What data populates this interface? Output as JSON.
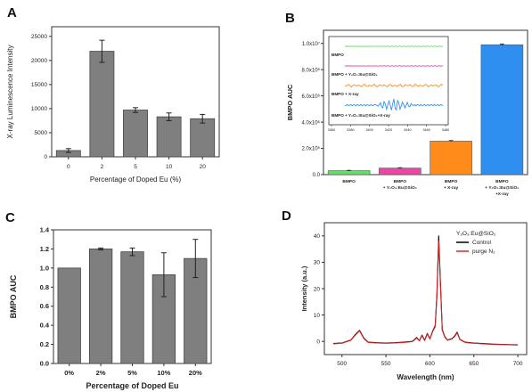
{
  "figure": {
    "panel_labels": [
      "A",
      "B",
      "C",
      "D"
    ]
  },
  "chart_data": [
    {
      "panel": "A",
      "type": "bar",
      "xlabel": "Percentage of Doped Eu (%)",
      "ylabel": "X-ray Luminescence Intensity",
      "categories": [
        "0",
        "2",
        "5",
        "10",
        "20"
      ],
      "values": [
        1300,
        21900,
        9700,
        8300,
        7900
      ],
      "errors": [
        400,
        2300,
        500,
        800,
        900
      ],
      "ylim": [
        0,
        27000
      ],
      "yticks": [
        0,
        5000,
        10000,
        15000,
        20000,
        25000
      ],
      "bar_color": "#7f7f7f"
    },
    {
      "panel": "B",
      "type": "bar",
      "ylabel": "BMPO AUC",
      "ylim": [
        0,
        11000000
      ],
      "yticks": [
        0,
        2000000,
        4000000,
        6000000,
        8000000,
        10000000
      ],
      "ytick_labels": [
        "0.0",
        "2.0x10⁶",
        "4.0x10⁶",
        "6.0x10⁶",
        "8.0x10⁶",
        "1.0x10⁷"
      ],
      "categories": [
        [
          "BMPO"
        ],
        [
          "BMPO",
          "+ Y₂O₃:Eu@SiO₂"
        ],
        [
          "BMPO",
          "+ X-ray"
        ],
        [
          "BMPO",
          "+ Y₂O₃:Eu@SiO₂",
          "+X-ray"
        ]
      ],
      "values": [
        300000,
        500000,
        2550000,
        9900000
      ],
      "errors": [
        30000,
        30000,
        50000,
        60000
      ],
      "colors": [
        "#66dd66",
        "#ee44aa",
        "#ff8c1a",
        "#2f8ff0"
      ],
      "inset": {
        "type": "line",
        "x_ticks": [
          3360,
          3380,
          3400,
          3420,
          3440,
          3460,
          3480
        ],
        "xlim": [
          3360,
          3480
        ],
        "series": [
          {
            "name": "BMPO",
            "color": "#66dd66"
          },
          {
            "name": "BMPO + Y₂O₃:Eu@SiO₂",
            "color": "#ee44aa"
          },
          {
            "name": "BMPO + X-ray",
            "color": "#ff8c1a"
          },
          {
            "name": "BMPO + Y₂O₃:Eu@SiO₂+X-ray",
            "color": "#2f8ff0"
          }
        ]
      }
    },
    {
      "panel": "C",
      "type": "bar",
      "xlabel": "Percentage of Doped Eu",
      "ylabel": "BMPO AUC",
      "categories": [
        "0%",
        "2%",
        "5%",
        "10%",
        "20%"
      ],
      "values": [
        1.0,
        1.2,
        1.17,
        0.93,
        1.1
      ],
      "errors": [
        0.0,
        0.01,
        0.04,
        0.23,
        0.2
      ],
      "ylim": [
        0,
        1.4
      ],
      "yticks": [
        0.0,
        0.2,
        0.4,
        0.6,
        0.8,
        1.0,
        1.2,
        1.4
      ],
      "bar_color": "#7f7f7f"
    },
    {
      "panel": "D",
      "type": "line",
      "xlabel": "Wavelength (nm)",
      "ylabel": "Intensity (a.u.)",
      "legend_title": "Y₂O₃:Eu@SiO₂",
      "xlim": [
        480,
        710
      ],
      "ylim": [
        -5,
        45
      ],
      "xticks": [
        500,
        550,
        600,
        650,
        700
      ],
      "yticks": [
        0,
        10,
        20,
        30,
        40
      ],
      "series": [
        {
          "name": "Control",
          "color": "#000000",
          "x": [
            490,
            500,
            510,
            515,
            520,
            525,
            530,
            540,
            550,
            560,
            570,
            580,
            585,
            588,
            591,
            594,
            597,
            600,
            603,
            606,
            608,
            610,
            612,
            614,
            617,
            620,
            625,
            628,
            631,
            634,
            640,
            650,
            660,
            670,
            680,
            690,
            700
          ],
          "y": [
            -0.8,
            -0.6,
            0.5,
            2.5,
            4.2,
            1.2,
            -0.3,
            -0.5,
            -0.6,
            -0.5,
            -0.3,
            0.0,
            1.5,
            0.3,
            2.4,
            0.4,
            3.0,
            1.0,
            3.8,
            6.0,
            18.0,
            40.0,
            22.0,
            4.5,
            1.8,
            0.5,
            1.0,
            2.0,
            3.5,
            0.8,
            -0.3,
            -0.6,
            -0.8,
            -1.0,
            -1.1,
            -1.2,
            -1.3
          ]
        },
        {
          "name": "purge N₂",
          "color": "#d62728",
          "x": [
            490,
            500,
            510,
            515,
            520,
            525,
            530,
            540,
            550,
            560,
            570,
            580,
            585,
            588,
            591,
            594,
            597,
            600,
            603,
            606,
            608,
            610,
            612,
            614,
            617,
            620,
            625,
            628,
            631,
            634,
            640,
            650,
            660,
            670,
            680,
            690,
            700
          ],
          "y": [
            -0.9,
            -0.7,
            0.4,
            2.3,
            4.0,
            1.0,
            -0.4,
            -0.6,
            -0.7,
            -0.6,
            -0.4,
            -0.1,
            1.3,
            0.2,
            2.2,
            0.3,
            2.8,
            0.9,
            3.6,
            5.6,
            17.0,
            38.0,
            21.0,
            4.2,
            1.6,
            0.4,
            0.9,
            1.8,
            3.2,
            0.7,
            -0.4,
            -0.7,
            -0.9,
            -1.1,
            -1.2,
            -1.3,
            -1.4
          ]
        }
      ]
    }
  ]
}
